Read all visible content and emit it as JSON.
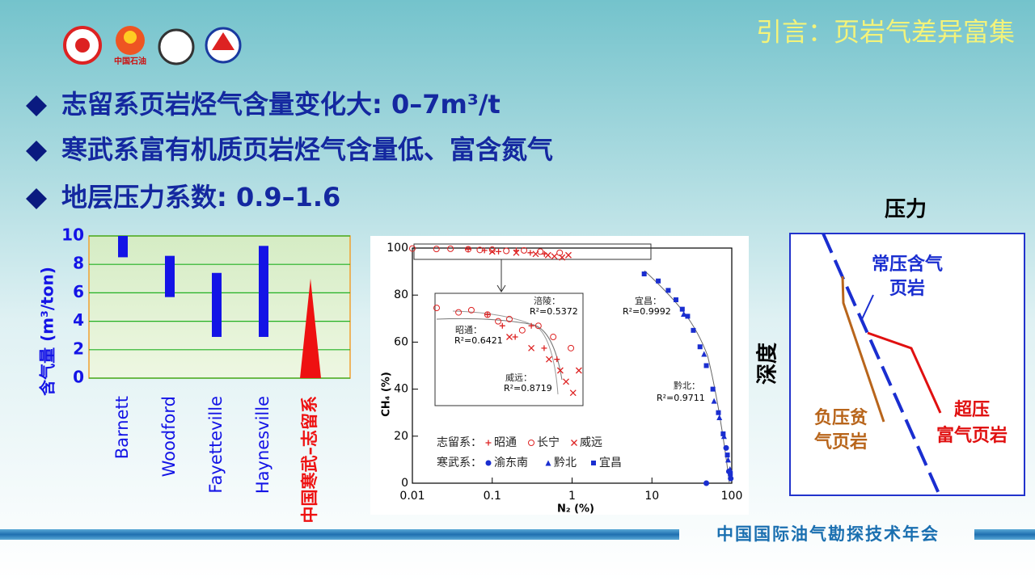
{
  "header": {
    "logo_text": "中国石油",
    "title": "引言：页岩气差异富集"
  },
  "bullets": [
    "志留系页岩烃气含量变化大: 0–7m³/t",
    "寒武系富有机质页岩烃气含量低、富含氮气",
    "地层压力系数: 0.9–1.6"
  ],
  "chart_data": [
    {
      "type": "range-bar",
      "ylabel": "含气量 (m³/ton)",
      "categories": [
        "Barnett",
        "Woodford",
        "Fayetteville",
        "Haynesville",
        "中国寒武–志留系"
      ],
      "lows": [
        8.5,
        5.7,
        2.9,
        2.9,
        0
      ],
      "highs": [
        10,
        8.6,
        7.4,
        9.3,
        7
      ],
      "colors": [
        "#1414e6",
        "#1414e6",
        "#1414e6",
        "#1414e6",
        "#ee1111"
      ],
      "shapes": [
        "bar",
        "bar",
        "bar",
        "bar",
        "triangle"
      ],
      "ylim": [
        0,
        10
      ],
      "yticks": [
        0,
        2,
        4,
        6,
        8,
        10
      ],
      "grid": true
    },
    {
      "type": "scatter",
      "xlabel": "N₂ (%)",
      "ylabel": "CH₄ (%)",
      "xscale": "log",
      "xlim": [
        0.01,
        100
      ],
      "xticks": [
        0.01,
        0.1,
        1,
        10,
        100
      ],
      "ylim": [
        0,
        100
      ],
      "yticks": [
        0,
        20,
        40,
        60,
        80,
        100
      ],
      "legend_groups": [
        "志留系：",
        "寒武系："
      ],
      "series": [
        {
          "name": "昭通",
          "group": 0,
          "marker": "plus",
          "color": "#d22",
          "x": [
            0.05,
            0.08,
            0.12,
            0.2,
            0.3,
            0.45
          ],
          "values": [
            99.5,
            99,
            98.5,
            99,
            98,
            97.5
          ]
        },
        {
          "name": "长宁",
          "group": 0,
          "marker": "circle",
          "color": "#d22",
          "x": [
            0.01,
            0.02,
            0.03,
            0.05,
            0.07,
            0.1,
            0.15,
            0.25,
            0.4,
            0.7
          ],
          "values": [
            99.8,
            99.6,
            99.7,
            99.5,
            99.2,
            99.3,
            98.8,
            99,
            98.5,
            98
          ]
        },
        {
          "name": "威远",
          "group": 0,
          "marker": "cross",
          "color": "#d22",
          "x": [
            0.1,
            0.2,
            0.35,
            0.5,
            0.6,
            0.75,
            0.9
          ],
          "values": [
            98.5,
            98,
            97.5,
            97,
            96.5,
            96,
            97
          ]
        },
        {
          "name": "渝东南",
          "group": 1,
          "marker": "dot",
          "color": "#1a2ed0",
          "x": [
            48,
            85,
            92,
            97
          ],
          "values": [
            0,
            15,
            5,
            2
          ]
        },
        {
          "name": "黔北",
          "group": 1,
          "marker": "triangle",
          "color": "#1a2ed0",
          "x": [
            25,
            45,
            60,
            70,
            80,
            90,
            95
          ],
          "values": [
            72,
            55,
            35,
            28,
            20,
            10,
            6
          ]
        },
        {
          "name": "宜昌",
          "group": 1,
          "marker": "square",
          "color": "#1a2ed0",
          "x": [
            8,
            12,
            16,
            20,
            24,
            28,
            33,
            40,
            48,
            58,
            68,
            78,
            88,
            96
          ],
          "values": [
            89,
            86,
            82,
            78,
            74,
            71,
            65,
            58,
            50,
            40,
            30,
            21,
            12,
            4
          ]
        }
      ],
      "annotations": [
        [
          "涪陵：",
          "R²=0.5372"
        ],
        [
          "宜昌：",
          "R²=0.9992"
        ],
        [
          "昭通：",
          "R²=0.6421"
        ],
        [
          "威远：",
          "R²=0.8719"
        ],
        [
          "黔北：",
          "R²=0.9711"
        ]
      ]
    }
  ],
  "diagram": {
    "pressure": "压力",
    "depth": "深度",
    "normal_label": [
      "常压含气",
      "页岩"
    ],
    "negative_label": [
      "负压贫",
      "气页岩"
    ],
    "over_label": [
      "超压",
      "富气页岩"
    ]
  },
  "footer": "中国国际油气勘探技术年会"
}
